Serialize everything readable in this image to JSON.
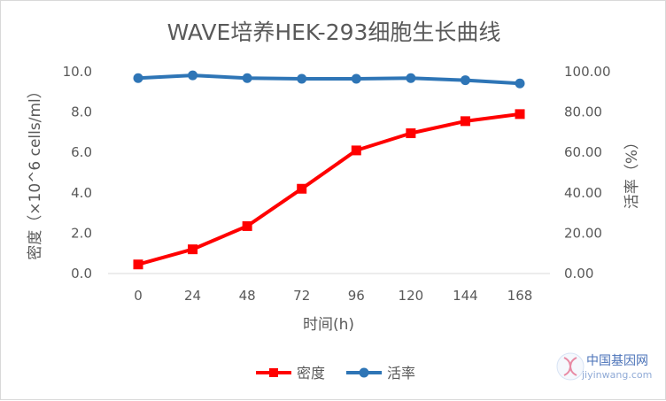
{
  "chart_data": {
    "type": "line",
    "title": "WAVE培养HEK-293细胞生长曲线",
    "xlabel": "时间(h)",
    "ylabel_left": "密度（×10^6 cells/ml）",
    "ylabel_right": "活率（%）",
    "x": [
      0,
      24,
      48,
      72,
      96,
      120,
      144,
      168
    ],
    "x_tick_labels": [
      "0",
      "24",
      "48",
      "72",
      "96",
      "120",
      "144",
      "168"
    ],
    "ylim_left": [
      0,
      10
    ],
    "ylim_right": [
      0,
      100
    ],
    "y_ticks_left": [
      "0.0",
      "2.0",
      "4.0",
      "6.0",
      "8.0",
      "10.0"
    ],
    "y_ticks_right": [
      "0.00",
      "20.00",
      "40.00",
      "60.00",
      "80.00",
      "100.00"
    ],
    "grid": false,
    "legend_position": "bottom",
    "series": [
      {
        "name": "密度",
        "axis": "left",
        "color": "#ff0000",
        "marker": "square",
        "values": [
          0.45,
          1.2,
          2.35,
          4.2,
          6.1,
          6.95,
          7.55,
          7.9
        ]
      },
      {
        "name": "活率",
        "axis": "right",
        "color": "#2e75b6",
        "marker": "circle",
        "values": [
          96.8,
          98.2,
          96.8,
          96.5,
          96.5,
          96.8,
          95.8,
          94.2
        ]
      }
    ]
  },
  "watermark": {
    "site_name": "中国基因网",
    "site_url": "jiyinwang.com"
  }
}
